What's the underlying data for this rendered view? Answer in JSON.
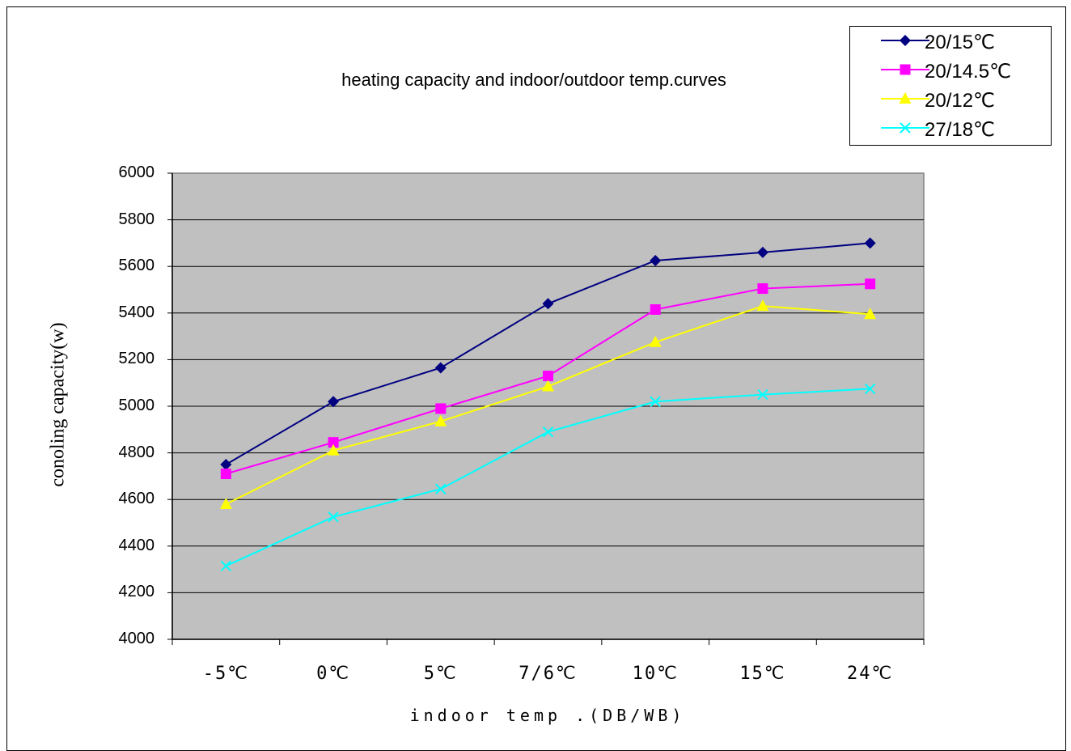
{
  "chart_data": {
    "type": "line",
    "title": "heating capacity and indoor/outdoor temp.curves",
    "xlabel": "indoor temp .(DB/WB)",
    "ylabel": "conoling capacity(w)",
    "categories": [
      "-5℃",
      "0℃",
      "5℃",
      "7/6℃",
      "10℃",
      "15℃",
      "24℃"
    ],
    "ylim": [
      4000,
      6000
    ],
    "yticks": [
      "4000",
      "4200",
      "4400",
      "4600",
      "4800",
      "5000",
      "5200",
      "5400",
      "5600",
      "5800",
      "6000"
    ],
    "grid": true,
    "legend_position": "top-right",
    "plot_background": "#c0c0c0",
    "series": [
      {
        "name": "20/15℃",
        "color": "#000080",
        "marker": "diamond",
        "values": [
          4750,
          5020,
          5165,
          5440,
          5625,
          5660,
          5700
        ]
      },
      {
        "name": "20/14.5℃",
        "color": "#ff00ff",
        "marker": "square",
        "values": [
          4710,
          4845,
          4990,
          5130,
          5415,
          5505,
          5525
        ]
      },
      {
        "name": "20/12℃",
        "color": "#ffff00",
        "marker": "triangle",
        "values": [
          4580,
          4810,
          4935,
          5085,
          5275,
          5430,
          5395
        ]
      },
      {
        "name": "27/18℃",
        "color": "#00ffff",
        "marker": "x",
        "values": [
          4315,
          4525,
          4645,
          4890,
          5020,
          5050,
          5075
        ]
      }
    ]
  }
}
